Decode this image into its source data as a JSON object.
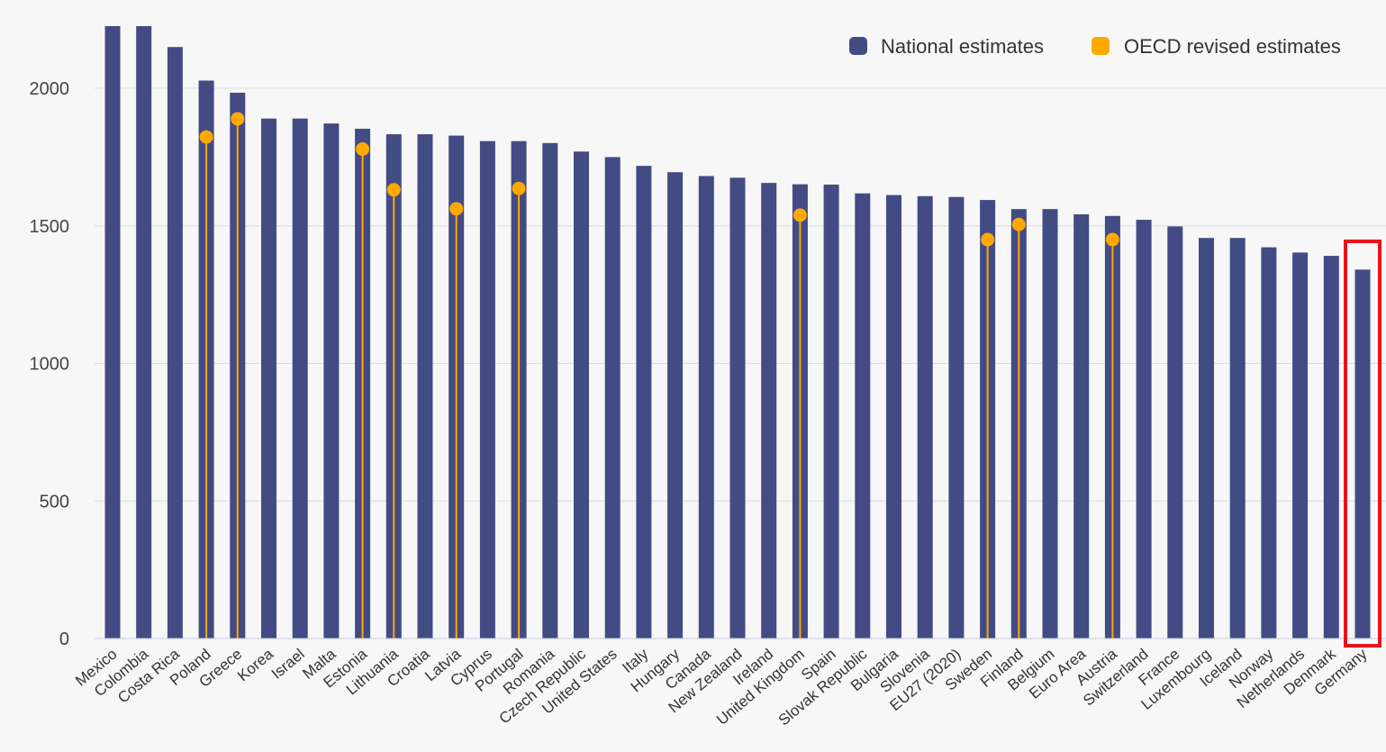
{
  "chart_data": {
    "type": "bar",
    "categories": [
      "Mexico",
      "Colombia",
      "Costa Rica",
      "Poland",
      "Greece",
      "Korea",
      "Israel",
      "Malta",
      "Estonia",
      "Lithuania",
      "Croatia",
      "Latvia",
      "Cyprus",
      "Portugal",
      "Romania",
      "Czech Republic",
      "United States",
      "Italy",
      "Hungary",
      "Canada",
      "New Zealand",
      "Ireland",
      "United Kingdom",
      "Spain",
      "Slovak Republic",
      "Bulgaria",
      "Slovenia",
      "EU27 (2020)",
      "Sweden",
      "Finland",
      "Belgium",
      "Euro Area",
      "Austria",
      "Switzerland",
      "France",
      "Luxembourg",
      "Iceland",
      "Norway",
      "Netherlands",
      "Denmark",
      "Germany"
    ],
    "series": [
      {
        "name": "National estimates",
        "color": "#434b84",
        "values": [
          2226,
          2226,
          2150,
          2028,
          1984,
          1890,
          1890,
          1872,
          1853,
          1833,
          1833,
          1828,
          1808,
          1808,
          1801,
          1770,
          1750,
          1718,
          1695,
          1681,
          1675,
          1656,
          1651,
          1650,
          1618,
          1612,
          1608,
          1605,
          1594,
          1561,
          1561,
          1542,
          1536,
          1522,
          1498,
          1456,
          1456,
          1422,
          1403,
          1391,
          1341
        ]
      },
      {
        "name": "OECD revised estimates",
        "color": "#ffa800",
        "values": [
          null,
          null,
          null,
          1823,
          1889,
          null,
          null,
          null,
          1779,
          1631,
          null,
          1562,
          null,
          1636,
          null,
          null,
          null,
          null,
          null,
          null,
          null,
          null,
          1539,
          null,
          null,
          null,
          null,
          null,
          1450,
          1505,
          null,
          null,
          1450,
          null,
          null,
          null,
          null,
          null,
          null,
          null,
          null
        ]
      }
    ],
    "yticks": [
      0,
      500,
      1000,
      1500,
      2000
    ],
    "ylim": [
      0,
      2226
    ],
    "grid": true,
    "legend_position": "top-right",
    "highlight": {
      "category": "Germany",
      "color": "#e8141c"
    }
  }
}
